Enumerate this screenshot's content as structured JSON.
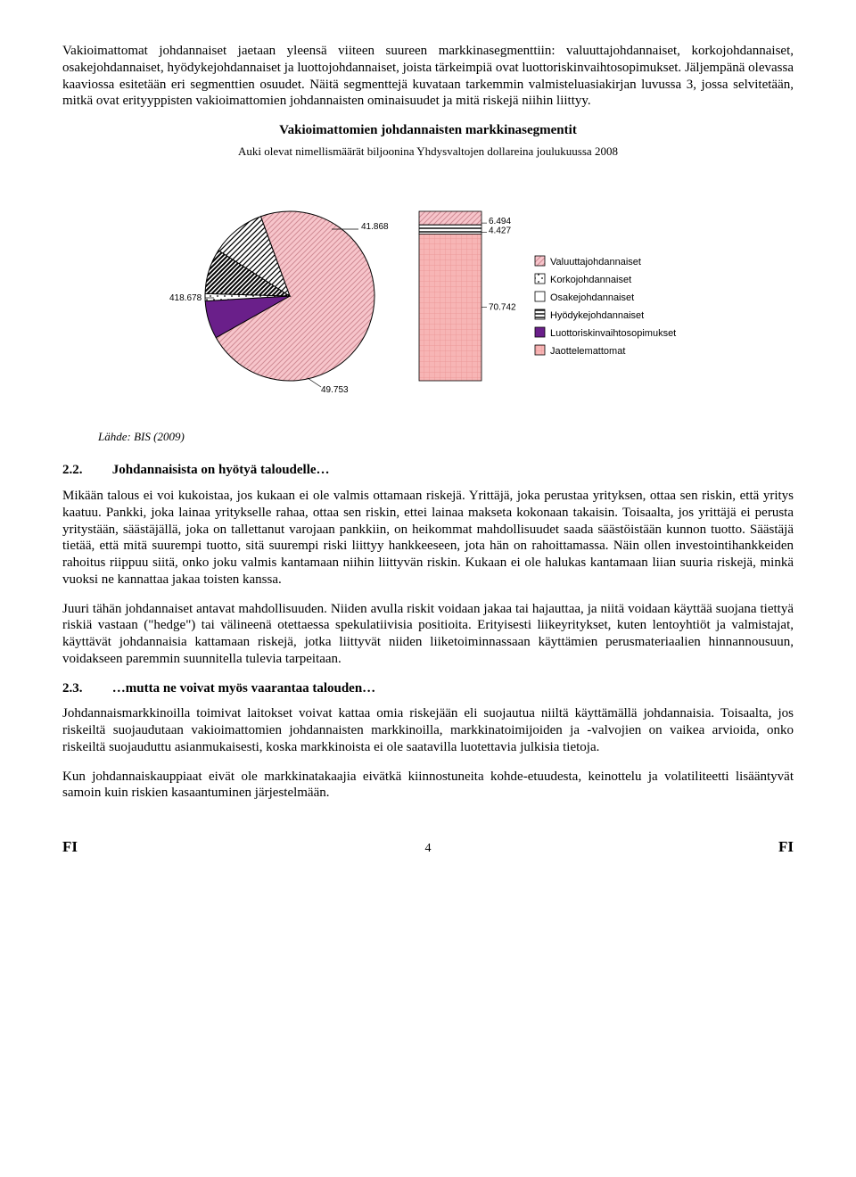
{
  "para1": "Vakioimattomat johdannaiset jaetaan yleensä viiteen suureen markkinasegmenttiin: valuuttajohdannaiset, korkojohdannaiset, osakejohdannaiset, hyödykejohdannaiset ja luottojohdannaiset, joista tärkeimpiä ovat luottoriskinvaihtosopimukset. Jäljempänä olevassa kaaviossa esitetään eri segmenttien osuudet. Näitä segmenttejä kuvataan tarkemmin valmisteluasiakirjan luvussa 3, jossa selvitetään, mitkä ovat erityyppisten vakioimattomien johdannaisten ominaisuudet ja mitä riskejä niihin liittyy.",
  "chart": {
    "title": "Vakioimattomien johdannaisten markkinasegmentit",
    "subtitle": "Auki olevat nimellismäärät biljoonina Yhdysvaltojen dollareina joulukuussa 2008",
    "pie": {
      "slices": [
        {
          "label": "418.678",
          "value": 418.678,
          "pattern": "diag-pink"
        },
        {
          "label": "41.868",
          "value": 41.868,
          "pattern": "solid-purple"
        },
        {
          "label": "",
          "value": 8.0,
          "pattern": "dots"
        },
        {
          "label": "49.753",
          "value": 49.753,
          "pattern": "diag-heavy"
        },
        {
          "label": "",
          "value": 60.0,
          "pattern": "diag-black"
        }
      ],
      "stroke": "#000000"
    },
    "bar": {
      "segments": [
        {
          "label": "6.494",
          "value": 6.494,
          "pattern": "diag-pink"
        },
        {
          "label": "4.427",
          "value": 4.427,
          "pattern": "hstripe"
        },
        {
          "label": "70.742",
          "value": 70.742,
          "pattern": "pink-grid"
        }
      ],
      "total_height": 190
    },
    "legend": [
      {
        "label": "Valuuttajohdannaiset",
        "pattern": "diag-pink"
      },
      {
        "label": "Korkojohdannaiset",
        "pattern": "dots"
      },
      {
        "label": "Osakejohdannaiset",
        "pattern": "white"
      },
      {
        "label": "Hyödykejohdannaiset",
        "pattern": "hstripe"
      },
      {
        "label": "Luottoriskinvaihtosopimukset",
        "pattern": "solid-purple"
      },
      {
        "label": "Jaottelemattomat",
        "pattern": "pink-grid"
      }
    ],
    "colors": {
      "pink_fill": "#f7c5cb",
      "pink_line": "#d08b95",
      "purple": "#6a1f8a",
      "black": "#000000",
      "white": "#ffffff",
      "bar_pink": "#f7b5b5"
    }
  },
  "source_label": "Lähde:",
  "source_value": "BIS (2009)",
  "sec22_num": "2.2.",
  "sec22_title": "Johdannaisista on hyötyä taloudelle…",
  "para22a": "Mikään talous ei voi kukoistaa, jos kukaan ei ole valmis ottamaan riskejä. Yrittäjä, joka perustaa yrityksen, ottaa sen riskin, että yritys kaatuu. Pankki, joka lainaa yritykselle rahaa, ottaa sen riskin, ettei lainaa makseta kokonaan takaisin. Toisaalta, jos yrittäjä ei perusta yritystään, säästäjällä, joka on tallettanut varojaan pankkiin, on heikommat mahdollisuudet saada säästöistään kunnon tuotto. Säästäjä tietää, että mitä suurempi tuotto, sitä suurempi riski liittyy hankkeeseen, jota hän on rahoittamassa. Näin ollen investointihankkeiden rahoitus riippuu siitä, onko joku valmis kantamaan niihin liittyvän riskin. Kukaan ei ole halukas kantamaan liian suuria riskejä, minkä vuoksi ne kannattaa jakaa toisten kanssa.",
  "para22b": "Juuri tähän johdannaiset antavat mahdollisuuden. Niiden avulla riskit voidaan jakaa tai hajauttaa, ja niitä voidaan käyttää suojana tiettyä riskiä vastaan (\"hedge\") tai välineenä otettaessa spekulatiivisia positioita. Erityisesti liikeyritykset, kuten lentoyhtiöt ja valmistajat, käyttävät johdannaisia kattamaan riskejä, jotka liittyvät niiden liiketoiminnassaan käyttämien perusmateriaalien hinnannousuun, voidakseen paremmin suunnitella tulevia tarpeitaan.",
  "sec23_num": "2.3.",
  "sec23_title": "…mutta ne voivat myös vaarantaa talouden…",
  "para23a": "Johdannaismarkkinoilla toimivat laitokset voivat kattaa omia riskejään eli suojautua niiltä käyttämällä johdannaisia. Toisaalta, jos riskeiltä suojaudutaan vakioimattomien johdannaisten markkinoilla, markkinatoimijoiden ja -valvojien on vaikea arvioida, onko riskeiltä suojauduttu asianmukaisesti, koska markkinoista ei ole saatavilla luotettavia julkisia tietoja.",
  "para23b": "Kun johdannaiskauppiaat eivät ole markkinatakaajia eivätkä kiinnostuneita kohde-etuudesta, keinottelu ja volatiliteetti lisääntyvät samoin kuin riskien kasaantuminen järjestelmään.",
  "footer_left": "FI",
  "footer_page": "4",
  "footer_right": "FI"
}
